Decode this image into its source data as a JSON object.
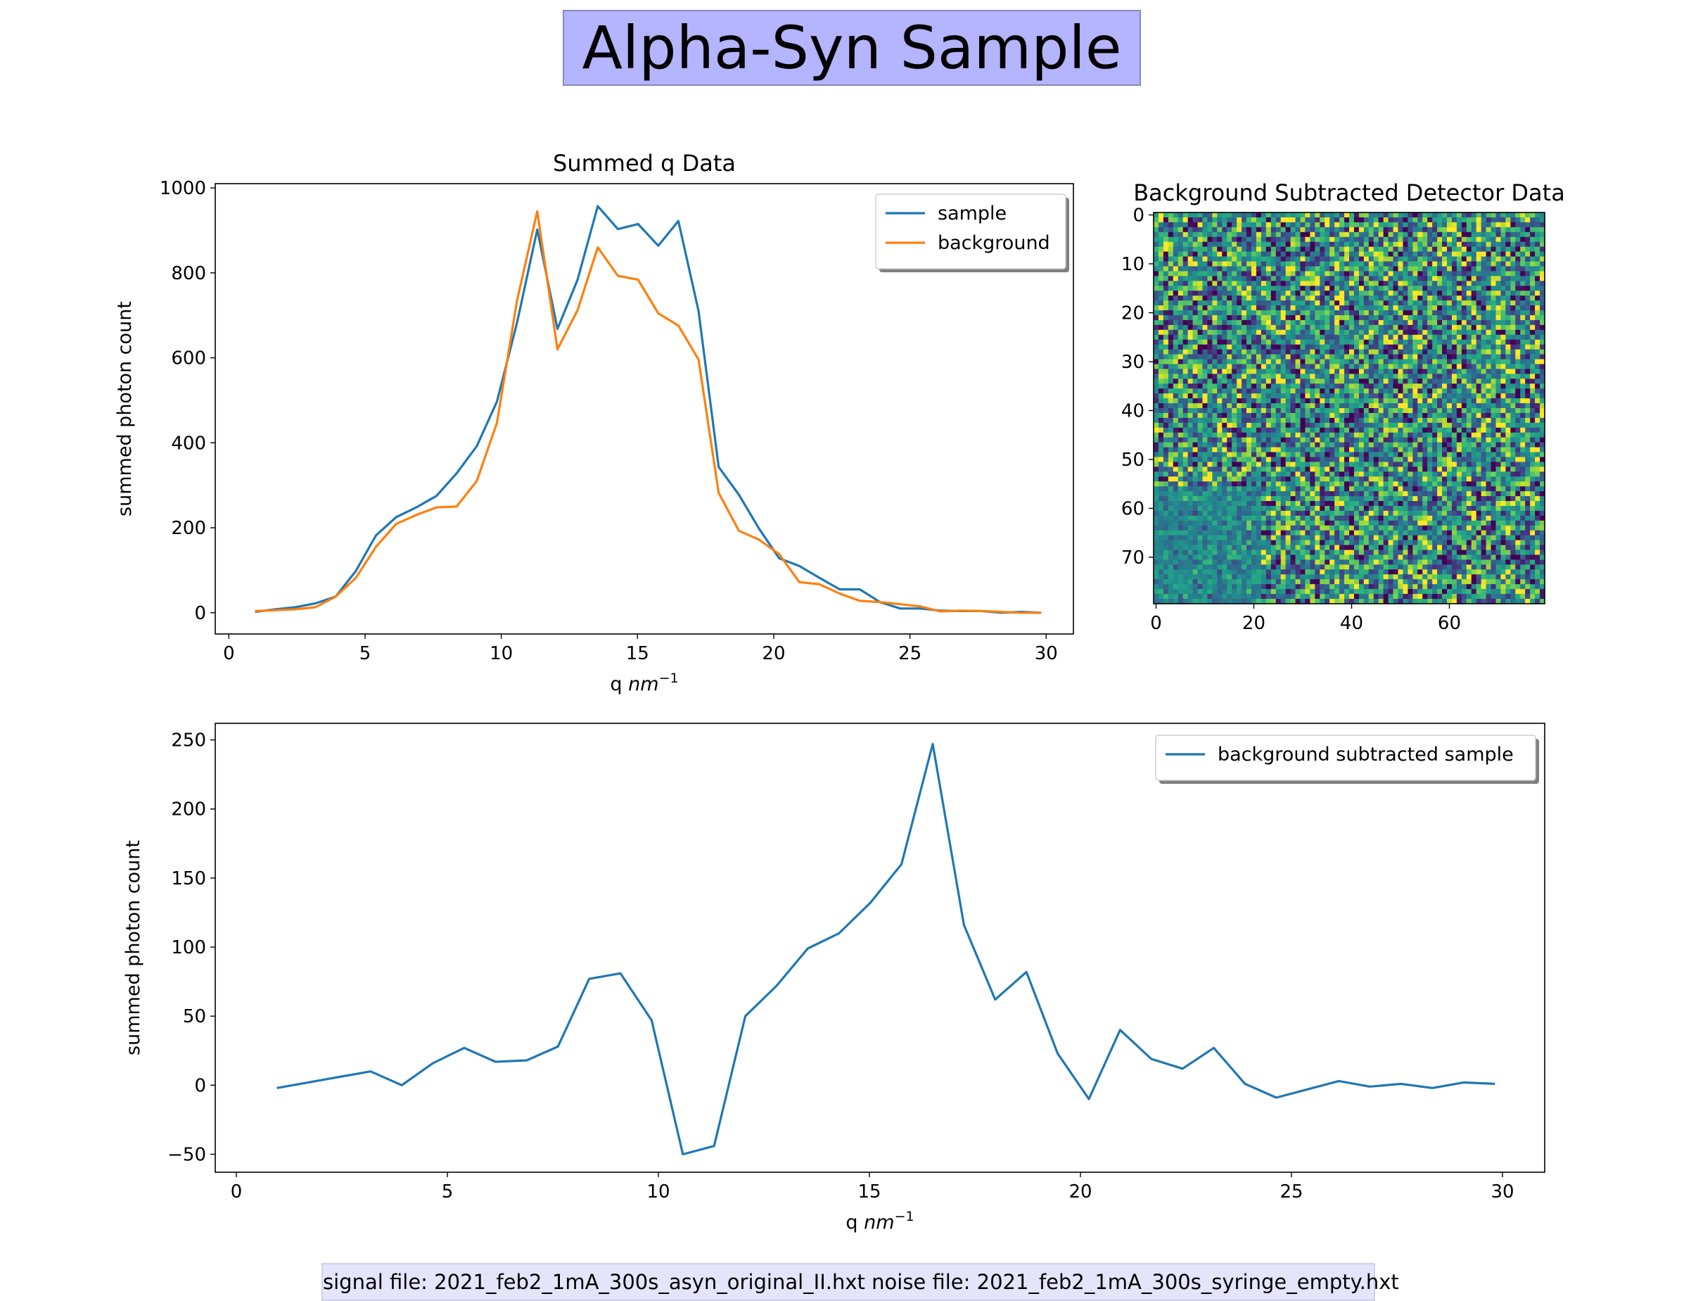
{
  "header": {
    "title": "Alpha-Syn Sample"
  },
  "footer": {
    "text": "signal file: 2021_feb2_1mA_300s_asyn_original_II.hxt noise file: 2021_feb2_1mA_300s_syringe_empty.hxt"
  },
  "colors": {
    "sample": "#1f77b4",
    "background": "#ff7f0e",
    "title_box": "#b4b4ff",
    "footer_box": "#e4e4fb"
  },
  "chart_data": [
    {
      "type": "line",
      "title": "Summed q Data",
      "xlabel": "q nm⁻¹",
      "ylabel": "summed photon count",
      "xlim": [
        -0.5,
        31
      ],
      "ylim": [
        -50,
        1010
      ],
      "xticks": [
        0,
        5,
        10,
        15,
        20,
        25,
        30
      ],
      "yticks": [
        0,
        200,
        400,
        600,
        800,
        1000
      ],
      "legend": "top-right",
      "x": [
        0.96,
        1.7,
        2.44,
        3.18,
        3.92,
        4.66,
        5.4,
        6.14,
        6.88,
        7.62,
        8.36,
        9.1,
        9.84,
        10.58,
        11.32,
        12.06,
        12.8,
        13.54,
        14.28,
        15.02,
        15.76,
        16.5,
        17.24,
        17.98,
        18.72,
        19.46,
        20.2,
        20.94,
        21.68,
        22.42,
        23.16,
        23.9,
        24.64,
        25.38,
        26.12,
        26.86,
        27.6,
        28.34,
        29.08,
        29.82
      ],
      "series": [
        {
          "name": "sample",
          "color": "#1f77b4",
          "values": [
            2,
            8,
            13,
            22,
            38,
            98,
            182,
            225,
            248,
            275,
            328,
            392,
            497,
            683,
            902,
            668,
            784,
            957,
            903,
            915,
            864,
            922,
            710,
            343,
            278,
            198,
            128,
            110,
            82,
            55,
            55,
            25,
            10,
            10,
            5,
            4,
            4,
            0,
            2,
            0
          ]
        },
        {
          "name": "background",
          "color": "#ff7f0e",
          "values": [
            4,
            6,
            8,
            13,
            38,
            82,
            155,
            209,
            230,
            248,
            250,
            310,
            447,
            735,
            945,
            620,
            712,
            860,
            793,
            784,
            705,
            676,
            596,
            282,
            193,
            172,
            138,
            72,
            67,
            45,
            28,
            25,
            20,
            15,
            3,
            5,
            4,
            2,
            0,
            0
          ]
        }
      ]
    },
    {
      "type": "heatmap",
      "title": "Background Subtracted Detector Data",
      "xticks": [
        0,
        20,
        40,
        60
      ],
      "yticks": [
        0,
        10,
        20,
        30,
        40,
        50,
        60,
        70
      ],
      "rows": 80,
      "cols": 80,
      "colormap": "viridis"
    },
    {
      "type": "line",
      "xlabel": "q nm⁻¹",
      "ylabel": "summed photon count",
      "xlim": [
        -0.5,
        31
      ],
      "ylim": [
        -63,
        262
      ],
      "xticks": [
        0,
        5,
        10,
        15,
        20,
        25,
        30
      ],
      "yticks": [
        -50,
        0,
        50,
        100,
        150,
        200,
        250
      ],
      "legend": "top-right",
      "x": [
        0.96,
        1.7,
        2.44,
        3.18,
        3.92,
        4.66,
        5.4,
        6.14,
        6.88,
        7.62,
        8.36,
        9.1,
        9.84,
        10.58,
        11.32,
        12.06,
        12.8,
        13.54,
        14.28,
        15.02,
        15.76,
        16.5,
        17.24,
        17.98,
        18.72,
        19.46,
        20.2,
        20.94,
        21.68,
        22.42,
        23.16,
        23.9,
        24.64,
        25.38,
        26.12,
        26.86,
        27.6,
        28.34,
        29.08,
        29.82
      ],
      "series": [
        {
          "name": "background subtracted sample",
          "color": "#1f77b4",
          "values": [
            -2,
            2,
            6,
            10,
            0,
            16,
            27,
            17,
            18,
            28,
            77,
            81,
            47,
            -50,
            -44,
            50,
            72,
            99,
            110,
            132,
            160,
            247,
            116,
            62,
            82,
            23,
            -10,
            40,
            19,
            12,
            27,
            1,
            -9,
            -3,
            3,
            -1,
            1,
            -2,
            2,
            1
          ]
        }
      ]
    }
  ]
}
